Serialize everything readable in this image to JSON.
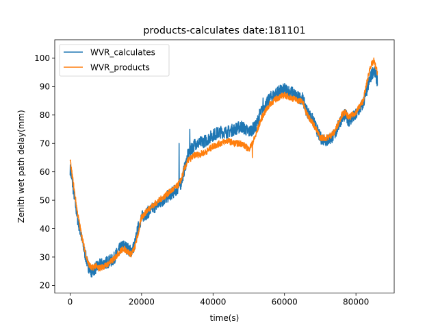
{
  "chart_data": {
    "type": "line",
    "title": "products-calculates date:181101",
    "xlabel": "time(s)",
    "ylabel": "Zenith wet path delay(mm)",
    "xlim": [
      -4300,
      90700
    ],
    "ylim": [
      17.3,
      106.5
    ],
    "xticks": [
      0,
      20000,
      40000,
      60000,
      80000
    ],
    "yticks": [
      20,
      30,
      40,
      50,
      60,
      70,
      80,
      90,
      100
    ],
    "grid": false,
    "legend": "top-left",
    "series": [
      {
        "name": "WVR_calculates",
        "color": "#1f77b4",
        "noise": 2.2,
        "x": [
          0,
          1000,
          2000,
          3000,
          4000,
          5000,
          6000,
          7000,
          8000,
          10000,
          12000,
          14000,
          15000,
          16000,
          17000,
          18000,
          19000,
          20000,
          22000,
          24000,
          26000,
          28000,
          30000,
          31000,
          32000,
          33000,
          34000,
          35000,
          36000,
          38000,
          40000,
          42000,
          44000,
          46000,
          48000,
          50000,
          51000,
          52000,
          53000,
          54000,
          56000,
          58000,
          60000,
          62000,
          64000,
          65000,
          66000,
          68000,
          70000,
          72000,
          74000,
          76000,
          77000,
          78000,
          80000,
          82000,
          84000,
          85000,
          86000
        ],
        "y": [
          61,
          53,
          44,
          38,
          32,
          27,
          25,
          26,
          27,
          28,
          29,
          33,
          34,
          33,
          32,
          34,
          40,
          44,
          46,
          48,
          50,
          52,
          54,
          56,
          61,
          66,
          68,
          70,
          70,
          71,
          73,
          74,
          74,
          75,
          76,
          74,
          75,
          76,
          80,
          82,
          86,
          88,
          89,
          88,
          86,
          86,
          82,
          78,
          72,
          71,
          73,
          79,
          80,
          78,
          80,
          84,
          93,
          96,
          92
        ],
        "spikes": [
          [
            30500,
            70
          ],
          [
            33500,
            75
          ],
          [
            54000,
            86
          ]
        ]
      },
      {
        "name": "WVR_products",
        "color": "#ff7f0e",
        "noise": 1.1,
        "x": [
          0,
          1000,
          2000,
          3000,
          4000,
          5000,
          6000,
          7000,
          8000,
          10000,
          12000,
          14000,
          15000,
          16000,
          17000,
          18000,
          19000,
          20000,
          22000,
          24000,
          26000,
          28000,
          30000,
          31000,
          32000,
          33000,
          34000,
          35000,
          36000,
          38000,
          40000,
          42000,
          44000,
          46000,
          48000,
          50000,
          51000,
          52000,
          53000,
          54000,
          56000,
          58000,
          60000,
          62000,
          64000,
          65000,
          66000,
          68000,
          70000,
          72000,
          74000,
          76000,
          77000,
          78000,
          80000,
          82000,
          84000,
          85000,
          86000
        ],
        "y": [
          64,
          55,
          46,
          39,
          33,
          28,
          26,
          27,
          26,
          27,
          29,
          32,
          33,
          32,
          31,
          33,
          38,
          44,
          47,
          49,
          51,
          53,
          55,
          57,
          61,
          64,
          65,
          66,
          66,
          67,
          69,
          70,
          71,
          70,
          70,
          68,
          70,
          73,
          77,
          80,
          84,
          86,
          87,
          86,
          85,
          85,
          81,
          77,
          72,
          72,
          74,
          80,
          81,
          79,
          81,
          85,
          97,
          99,
          95
        ],
        "spikes": [
          [
            51000,
            65
          ]
        ]
      }
    ]
  }
}
